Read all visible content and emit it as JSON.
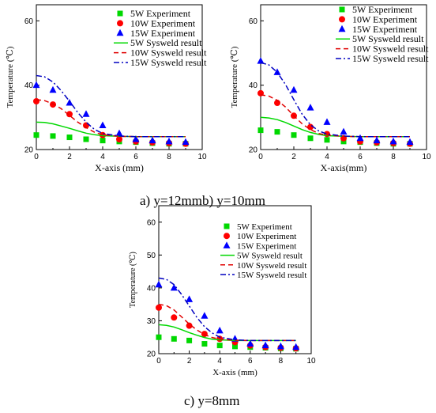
{
  "captions": {
    "ab": "a) y=12mmb) y=10mm",
    "c": "c) y=8mm"
  },
  "colors": {
    "green": "#00d800",
    "red": "#ff0000",
    "blue": "#0000ff",
    "red_line": "#e00000",
    "blue_line": "#0000c0"
  },
  "chart_data": [
    {
      "id": "a",
      "type": "scatter",
      "xlabel": "X-axis (mm)",
      "ylabel": "Temperature (℃)",
      "xlim": [
        0,
        10
      ],
      "ylim": [
        20,
        65
      ],
      "xticks": [
        0,
        2,
        4,
        6,
        8,
        10
      ],
      "yticks": [
        20,
        40,
        60
      ],
      "legend_position": "top-right",
      "series": [
        {
          "name": "5W  Experiment",
          "kind": "points",
          "marker": "square",
          "color": "green",
          "x": [
            0,
            1,
            2,
            3,
            4,
            5,
            6,
            7,
            8,
            9
          ],
          "y": [
            24.5,
            24.2,
            23.8,
            23.2,
            22.8,
            22.5,
            22.3,
            22.0,
            21.8,
            21.8
          ]
        },
        {
          "name": "10W Experiment",
          "kind": "points",
          "marker": "circle",
          "color": "red",
          "x": [
            0,
            1,
            2,
            3,
            4,
            5,
            6,
            7,
            8,
            9
          ],
          "y": [
            35,
            34,
            31,
            27.5,
            24.5,
            23.2,
            22.5,
            22.2,
            22.0,
            21.8
          ]
        },
        {
          "name": "15W Experiment",
          "kind": "points",
          "marker": "triangle",
          "color": "blue",
          "x": [
            0,
            1,
            2,
            3,
            4,
            5,
            6,
            7,
            8,
            9
          ],
          "y": [
            40,
            38.5,
            34.5,
            31,
            27.5,
            25,
            23.2,
            22.8,
            22.5,
            22.3
          ]
        },
        {
          "name": "5W   Sysweld result",
          "kind": "line",
          "dash": "solid",
          "color": "green",
          "x": [
            0,
            0.5,
            1,
            1.5,
            2,
            2.5,
            3,
            3.5,
            4,
            5,
            6,
            7,
            8,
            9
          ],
          "y": [
            28.5,
            28.4,
            28,
            27.3,
            26.6,
            25.8,
            25.1,
            24.6,
            24.3,
            24.1,
            24,
            24,
            24,
            24
          ]
        },
        {
          "name": "10W Sysweld result",
          "kind": "line",
          "dash": "dash",
          "color": "red_line",
          "x": [
            0,
            0.5,
            1,
            1.5,
            2,
            2.5,
            3,
            3.5,
            4,
            5,
            6,
            7,
            8,
            9
          ],
          "y": [
            35.5,
            35.2,
            34.2,
            32.7,
            30.6,
            28.5,
            26.8,
            25.4,
            24.6,
            24.1,
            24,
            24,
            24,
            24
          ]
        },
        {
          "name": "15W Sysweld result",
          "kind": "line",
          "dash": "dashdot",
          "color": "blue_line",
          "x": [
            0,
            0.5,
            1,
            1.5,
            2,
            2.5,
            3,
            3.5,
            4,
            5,
            6,
            7,
            8,
            9
          ],
          "y": [
            43,
            42.6,
            41,
            38.3,
            35,
            31.5,
            28.5,
            26.3,
            25,
            24.2,
            24,
            24,
            24,
            24
          ]
        }
      ]
    },
    {
      "id": "b",
      "type": "scatter",
      "xlabel": "X-axis(mm)",
      "ylabel": "Temperature (℃)",
      "xlim": [
        0,
        10
      ],
      "ylim": [
        20,
        65
      ],
      "xticks": [
        0,
        2,
        4,
        6,
        8,
        10
      ],
      "yticks": [
        20,
        40,
        60
      ],
      "legend_position": "top-right",
      "series": [
        {
          "name": "5W  Experiment",
          "kind": "points",
          "marker": "square",
          "color": "green",
          "x": [
            0,
            1,
            2,
            3,
            4,
            5,
            6,
            7,
            8,
            9
          ],
          "y": [
            26,
            25.5,
            24.5,
            23.5,
            23,
            22.5,
            22.3,
            22,
            21.8,
            21.8
          ]
        },
        {
          "name": "10W Experiment",
          "kind": "points",
          "marker": "circle",
          "color": "red",
          "x": [
            0,
            1,
            2,
            3,
            4,
            5,
            6,
            7,
            8,
            9
          ],
          "y": [
            37.5,
            34.5,
            30.5,
            27,
            24.8,
            23.5,
            22.5,
            22.2,
            22.0,
            21.8
          ]
        },
        {
          "name": "15W Experiment",
          "kind": "points",
          "marker": "triangle",
          "color": "blue",
          "x": [
            0,
            1,
            2,
            3,
            4,
            5,
            6,
            7,
            8,
            9
          ],
          "y": [
            47.5,
            44,
            38.5,
            33,
            28.5,
            25.5,
            23.5,
            22.8,
            22.5,
            22.3
          ]
        },
        {
          "name": "5W   Sysweld result",
          "kind": "line",
          "dash": "solid",
          "color": "green",
          "x": [
            0,
            0.5,
            1,
            1.5,
            2,
            2.5,
            3,
            3.5,
            4,
            5,
            6,
            7,
            8,
            9
          ],
          "y": [
            30,
            29.8,
            29.3,
            28.4,
            27.3,
            26.2,
            25.3,
            24.7,
            24.3,
            24.1,
            24,
            24,
            24,
            24
          ]
        },
        {
          "name": "10W Sysweld result",
          "kind": "line",
          "dash": "dash",
          "color": "red_line",
          "x": [
            0,
            0.5,
            1,
            1.5,
            2,
            2.5,
            3,
            3.5,
            4,
            5,
            6,
            7,
            8,
            9
          ],
          "y": [
            37,
            36.6,
            35.3,
            33.2,
            30.5,
            28,
            26.2,
            25,
            24.5,
            24.1,
            24,
            24,
            24,
            24
          ]
        },
        {
          "name": "15W Sysweld result",
          "kind": "line",
          "dash": "dashdot",
          "color": "blue_line",
          "x": [
            0,
            0.5,
            1,
            1.5,
            2,
            2.5,
            3,
            3.5,
            4,
            5,
            6,
            7,
            8,
            9
          ],
          "y": [
            47,
            46.3,
            44,
            40.2,
            35.5,
            31,
            27.7,
            25.8,
            24.8,
            24.2,
            24,
            24,
            24,
            24
          ]
        }
      ]
    },
    {
      "id": "c",
      "type": "scatter",
      "xlabel": "X-axis (mm)",
      "ylabel": "Temperature (℃)",
      "xlim": [
        0,
        10
      ],
      "ylim": [
        20,
        65
      ],
      "xticks": [
        0,
        2,
        4,
        6,
        8,
        10
      ],
      "yticks": [
        20,
        30,
        40,
        50,
        60
      ],
      "legend_position": "top-right",
      "series": [
        {
          "name": "5W  Experiment",
          "kind": "points",
          "marker": "square",
          "color": "green",
          "x": [
            0,
            1,
            2,
            3,
            4,
            5,
            6,
            7,
            8,
            9
          ],
          "y": [
            25,
            24.5,
            24,
            23,
            22.5,
            22.2,
            22,
            21.8,
            21.6,
            21.5
          ]
        },
        {
          "name": "10W Experiment",
          "kind": "points",
          "marker": "circle",
          "color": "red",
          "x": [
            0,
            1,
            2,
            3,
            4,
            5,
            6,
            7,
            8,
            9
          ],
          "y": [
            34,
            31,
            28.5,
            26,
            24.5,
            23.5,
            22.5,
            22,
            21.8,
            21.6
          ]
        },
        {
          "name": "15W Experiment",
          "kind": "points",
          "marker": "triangle",
          "color": "blue",
          "x": [
            0,
            1,
            2,
            3,
            4,
            5,
            6,
            7,
            8,
            9
          ],
          "y": [
            41,
            40,
            36.5,
            31.5,
            27,
            24.5,
            23,
            22.5,
            22.2,
            22
          ]
        },
        {
          "name": "5W   Sysweld result",
          "kind": "line",
          "dash": "solid",
          "color": "green",
          "x": [
            0,
            0.5,
            1,
            1.5,
            2,
            2.5,
            3,
            3.5,
            4,
            5,
            6,
            7,
            8,
            9
          ],
          "y": [
            28.8,
            28.6,
            28.1,
            27.3,
            26.4,
            25.6,
            24.9,
            24.4,
            24.2,
            24,
            24,
            24,
            24,
            24
          ]
        },
        {
          "name": "10W Sysweld result",
          "kind": "line",
          "dash": "dash",
          "color": "red_line",
          "x": [
            0,
            0.5,
            1,
            1.5,
            2,
            2.5,
            3,
            3.5,
            4,
            5,
            6,
            7,
            8,
            9
          ],
          "y": [
            35,
            34.6,
            33.3,
            31.2,
            29,
            27.2,
            25.8,
            24.9,
            24.4,
            24.1,
            24,
            24,
            24,
            24
          ]
        },
        {
          "name": "15W Sysweld result",
          "kind": "line",
          "dash": "dashdot",
          "color": "blue_line",
          "x": [
            0,
            0.5,
            1,
            1.5,
            2,
            2.5,
            3,
            3.5,
            4,
            5,
            6,
            7,
            8,
            9
          ],
          "y": [
            43,
            42.6,
            41,
            38,
            34.5,
            31,
            28.2,
            26.3,
            25,
            24.2,
            24,
            24,
            24,
            24
          ]
        }
      ]
    }
  ]
}
